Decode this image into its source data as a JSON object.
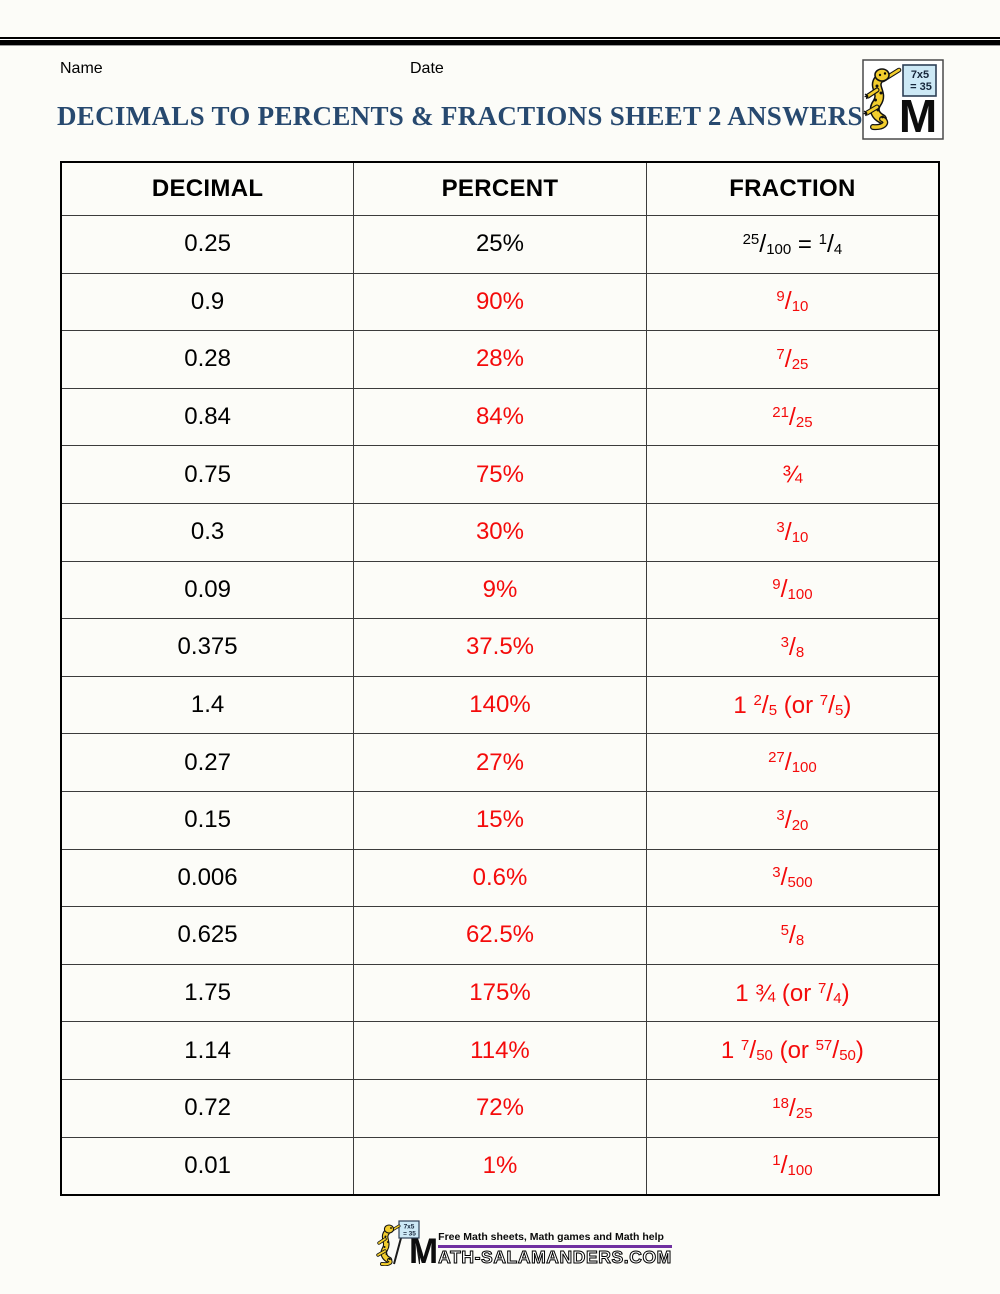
{
  "header": {
    "name_label": "Name",
    "date_label": "Date",
    "title": "DECIMALS TO PERCENTS & FRACTIONS SHEET 2 ANSWERS"
  },
  "logo": {
    "sign_line1": "7x5",
    "sign_line2": "= 35",
    "m_letter": "M"
  },
  "table": {
    "headers": [
      "DECIMAL",
      "PERCENT",
      "FRACTION"
    ],
    "rows": [
      {
        "decimal": "0.25",
        "percent": "25%",
        "fraction": "{25/100} = {1/4}",
        "example": true
      },
      {
        "decimal": "0.9",
        "percent": "90%",
        "fraction": "{9/10}",
        "example": false
      },
      {
        "decimal": "0.28",
        "percent": "28%",
        "fraction": "{7/25}",
        "example": false
      },
      {
        "decimal": "0.84",
        "percent": "84%",
        "fraction": "{21/25}",
        "example": false
      },
      {
        "decimal": "0.75",
        "percent": "75%",
        "fraction": "¾",
        "example": false
      },
      {
        "decimal": "0.3",
        "percent": "30%",
        "fraction": "{3/10}",
        "example": false
      },
      {
        "decimal": "0.09",
        "percent": "9%",
        "fraction": "{9/100}",
        "example": false
      },
      {
        "decimal": "0.375",
        "percent": "37.5%",
        "fraction": "{3/8}",
        "example": false
      },
      {
        "decimal": "1.4",
        "percent": "140%",
        "fraction": "1 {2/5} (or {7/5})",
        "example": false
      },
      {
        "decimal": "0.27",
        "percent": "27%",
        "fraction": "{27/100}",
        "example": false
      },
      {
        "decimal": "0.15",
        "percent": "15%",
        "fraction": "{3/20}",
        "example": false
      },
      {
        "decimal": "0.006",
        "percent": "0.6%",
        "fraction": "{3/500}",
        "example": false
      },
      {
        "decimal": "0.625",
        "percent": "62.5%",
        "fraction": "{5/8}",
        "example": false
      },
      {
        "decimal": "1.75",
        "percent": "175%",
        "fraction": "1 ¾ (or {7/4})",
        "example": false
      },
      {
        "decimal": "1.14",
        "percent": "114%",
        "fraction": "1 {7/50} (or {57/50})",
        "example": false
      },
      {
        "decimal": "0.72",
        "percent": "72%",
        "fraction": "{18/25}",
        "example": false
      },
      {
        "decimal": "0.01",
        "percent": "1%",
        "fraction": "{1/100}",
        "example": false
      }
    ]
  },
  "footer": {
    "tagline": "Free Math sheets, Math games and Math help",
    "site_first_letter": "M",
    "site_rest": "ATH-SALAMANDERS.COM",
    "sign_line1": "7x5",
    "sign_line2": "= 35"
  },
  "colors": {
    "answer_red": "#f40b0b",
    "title_blue": "#27496f",
    "underline_purple": "#7030a0"
  }
}
